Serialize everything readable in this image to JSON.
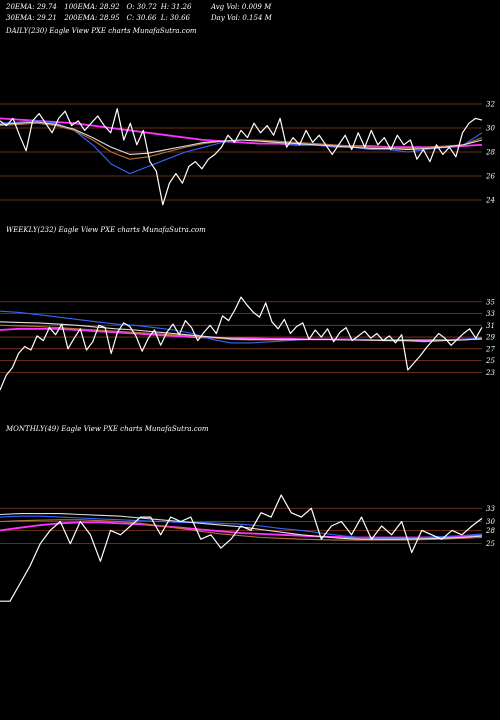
{
  "header": {
    "row1": [
      "20EMA: 29.74",
      "100EMA: 28.92",
      "O: 30.72",
      "H: 31.26",
      "Avg Vol: 0.009 M"
    ],
    "row2": [
      "30EMA: 29.21",
      "200EMA: 28.95",
      "C: 30.66",
      "L: 30.66",
      "Day Vol: 0.154  M"
    ]
  },
  "colors": {
    "background": "#000000",
    "price": "#ffffff",
    "ema_pink": "#ff33ff",
    "ema_blue": "#3366ff",
    "ema_brown": "#b87333",
    "ema_white": "#dddddd",
    "gridline": "#8b3a1a"
  },
  "chart_data": [
    {
      "type": "line",
      "label": "DAILY(230) Eagle  View  PXE charts MunafaSutra.com",
      "yticks": [
        32,
        30,
        28,
        26,
        24
      ],
      "ylim": [
        23,
        33
      ],
      "series": [
        {
          "role": "price",
          "values": [
            30.6,
            30.2,
            30.8,
            29.4,
            28.1,
            30.6,
            31.2,
            30.4,
            29.6,
            30.8,
            31.4,
            30.2,
            30.6,
            29.8,
            30.4,
            31.0,
            30.2,
            29.6,
            31.6,
            29.0,
            30.4,
            28.6,
            29.8,
            27.2,
            26.4,
            23.6,
            25.4,
            26.2,
            25.4,
            26.8,
            27.2,
            26.6,
            27.4,
            27.8,
            28.4,
            29.4,
            28.8,
            29.8,
            29.2,
            30.4,
            29.6,
            30.2,
            29.4,
            30.8,
            28.4,
            29.2,
            28.6,
            29.8,
            28.8,
            29.4,
            28.6,
            27.8,
            28.6,
            29.4,
            28.2,
            29.6,
            28.4,
            29.8,
            28.6,
            29.2,
            28.2,
            29.4,
            28.6,
            29.0,
            27.4,
            28.2,
            27.2,
            28.6,
            27.8,
            28.4,
            27.6,
            29.6,
            30.4,
            30.8,
            30.66
          ]
        },
        {
          "role": "ema",
          "color": "ema_pink",
          "values": [
            30.8,
            30.7,
            30.6,
            30.5,
            30.4,
            30.2,
            30.0,
            29.8,
            29.6,
            29.4,
            29.2,
            29.0,
            28.9,
            28.8,
            28.7,
            28.7,
            28.6,
            28.6,
            28.5,
            28.5,
            28.5,
            28.4,
            28.4,
            28.4,
            28.4,
            28.5,
            28.6
          ]
        },
        {
          "role": "ema",
          "color": "ema_blue",
          "values": [
            30.4,
            30.5,
            30.6,
            30.4,
            29.8,
            28.6,
            27.0,
            26.2,
            26.8,
            27.4,
            28.0,
            28.4,
            28.8,
            29.0,
            29.0,
            28.8,
            28.6,
            28.6,
            28.4,
            28.4,
            28.2,
            28.2,
            28.0,
            28.2,
            28.4,
            28.6,
            29.6
          ]
        },
        {
          "role": "ema",
          "color": "ema_brown",
          "values": [
            30.2,
            30.3,
            30.4,
            30.2,
            29.8,
            29.0,
            28.0,
            27.4,
            27.6,
            28.0,
            28.4,
            28.7,
            28.9,
            29.0,
            29.0,
            28.9,
            28.8,
            28.7,
            28.6,
            28.5,
            28.4,
            28.4,
            28.3,
            28.4,
            28.5,
            28.6,
            29.2
          ]
        },
        {
          "role": "ema",
          "color": "ema_white",
          "values": [
            30.3,
            30.4,
            30.5,
            30.3,
            29.9,
            29.2,
            28.4,
            27.8,
            27.9,
            28.2,
            28.5,
            28.8,
            28.9,
            29.0,
            28.9,
            28.8,
            28.7,
            28.6,
            28.5,
            28.4,
            28.3,
            28.3,
            28.2,
            28.3,
            28.4,
            28.6,
            29.0
          ]
        }
      ]
    },
    {
      "type": "line",
      "label": "WEEKLY(232) Eagle  View  PXE charts MunafaSutra.com",
      "yticks": [
        35,
        33,
        31,
        29,
        27,
        25,
        23
      ],
      "ylim": [
        20,
        37
      ],
      "series": [
        {
          "role": "price",
          "values": [
            20.0,
            22.5,
            23.8,
            26.2,
            27.4,
            26.8,
            29.2,
            28.4,
            30.6,
            29.4,
            31.2,
            27.0,
            28.8,
            30.4,
            26.8,
            28.2,
            31.0,
            30.6,
            26.2,
            29.8,
            31.4,
            30.8,
            29.2,
            26.6,
            28.8,
            30.2,
            27.6,
            29.8,
            31.2,
            29.4,
            31.8,
            30.6,
            28.4,
            29.8,
            31.0,
            29.6,
            32.6,
            31.8,
            33.6,
            35.8,
            34.4,
            33.2,
            32.4,
            34.8,
            31.6,
            30.4,
            32.0,
            29.6,
            30.8,
            31.4,
            28.6,
            30.2,
            29.0,
            30.4,
            28.2,
            29.8,
            30.6,
            28.4,
            29.2,
            30.0,
            28.8,
            29.6,
            28.4,
            29.2,
            28.0,
            29.4,
            23.4,
            24.6,
            25.8,
            27.2,
            28.4,
            29.6,
            28.8,
            27.6,
            28.6,
            29.6,
            30.4,
            28.8,
            30.66
          ]
        },
        {
          "role": "ema",
          "color": "ema_pink",
          "values": [
            30.2,
            30.4,
            30.4,
            30.4,
            30.2,
            30.0,
            29.8,
            29.6,
            29.4,
            29.2,
            29.0,
            28.9,
            28.8,
            28.8,
            28.7,
            28.7,
            28.6,
            28.6,
            28.6,
            28.5,
            28.5,
            28.5,
            28.5,
            28.5,
            28.6,
            28.7
          ]
        },
        {
          "role": "ema",
          "color": "ema_blue",
          "values": [
            33.4,
            33.2,
            32.8,
            32.4,
            32.0,
            31.6,
            31.2,
            31.0,
            30.6,
            30.2,
            29.6,
            28.6,
            28.0,
            28.0,
            28.2,
            28.4,
            28.6,
            28.6,
            28.6,
            28.6,
            28.4,
            28.4,
            28.2,
            28.4,
            28.6,
            28.9
          ]
        },
        {
          "role": "ema",
          "color": "ema_brown",
          "values": [
            31.0,
            30.9,
            30.8,
            30.6,
            30.4,
            30.2,
            30.0,
            29.8,
            29.6,
            29.4,
            29.2,
            28.9,
            28.6,
            28.5,
            28.5,
            28.5,
            28.6,
            28.6,
            28.5,
            28.5,
            28.4,
            28.4,
            28.3,
            28.4,
            28.5,
            28.7
          ]
        },
        {
          "role": "ema",
          "color": "ema_white",
          "values": [
            31.6,
            31.5,
            31.4,
            31.2,
            31.0,
            30.7,
            30.4,
            30.2,
            29.9,
            29.6,
            29.3,
            29.0,
            28.7,
            28.6,
            28.6,
            28.6,
            28.6,
            28.6,
            28.5,
            28.5,
            28.4,
            28.4,
            28.3,
            28.4,
            28.5,
            28.7
          ]
        }
      ]
    },
    {
      "type": "line",
      "label": "MONTHLY(49) Eagle  View  PXE charts MunafaSutra.com",
      "yticks": [
        33,
        30,
        28,
        25
      ],
      "ylim": [
        10,
        36
      ],
      "series": [
        {
          "role": "price",
          "values": [
            12.0,
            12.0,
            16.0,
            20.0,
            25.0,
            28.0,
            30.0,
            25.0,
            30.0,
            27.0,
            21.0,
            28.0,
            27.0,
            29.0,
            31.0,
            31.0,
            27.0,
            31.0,
            30.0,
            31.0,
            26.0,
            27.0,
            24.0,
            26.0,
            29.0,
            28.0,
            32.0,
            31.0,
            36.0,
            32.0,
            31.0,
            33.0,
            26.0,
            29.0,
            30.0,
            27.0,
            31.0,
            26.0,
            29.0,
            27.0,
            30.0,
            23.0,
            28.0,
            27.0,
            26.0,
            28.0,
            27.0,
            29.0,
            30.7
          ]
        },
        {
          "role": "ema",
          "color": "ema_pink",
          "values": [
            28.0,
            28.6,
            29.2,
            29.6,
            29.8,
            29.8,
            29.6,
            29.4,
            29.0,
            28.6,
            28.2,
            27.8,
            27.4,
            27.2,
            27.0,
            26.8,
            26.6,
            26.5,
            26.4,
            26.4,
            26.4,
            26.4,
            26.5,
            26.6,
            26.8
          ]
        },
        {
          "role": "ema",
          "color": "ema_blue",
          "values": [
            31.0,
            31.2,
            31.2,
            31.0,
            30.8,
            30.6,
            30.4,
            30.2,
            30.0,
            29.8,
            29.8,
            29.6,
            29.4,
            29.0,
            28.4,
            28.0,
            27.4,
            26.8,
            26.4,
            26.2,
            26.2,
            26.4,
            26.6,
            26.8,
            27.2
          ]
        },
        {
          "role": "ema",
          "color": "ema_brown",
          "values": [
            30.0,
            30.2,
            30.3,
            30.4,
            30.4,
            30.2,
            30.0,
            29.6,
            29.0,
            28.4,
            27.8,
            27.2,
            26.8,
            26.4,
            26.2,
            26.0,
            25.9,
            25.8,
            25.8,
            25.8,
            25.8,
            25.9,
            26.0,
            26.2,
            26.4
          ]
        },
        {
          "role": "ema",
          "color": "ema_white",
          "values": [
            31.6,
            31.8,
            31.8,
            31.8,
            31.6,
            31.4,
            31.2,
            30.8,
            30.4,
            30.0,
            29.6,
            29.2,
            28.8,
            28.2,
            27.6,
            27.0,
            26.6,
            26.2,
            26.0,
            26.0,
            26.0,
            26.1,
            26.2,
            26.4,
            26.7
          ]
        }
      ]
    }
  ]
}
